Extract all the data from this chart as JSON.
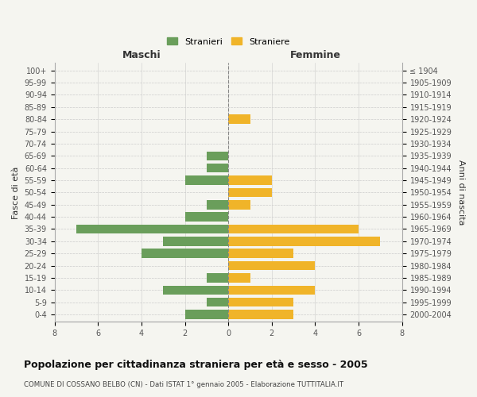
{
  "age_groups": [
    "0-4",
    "5-9",
    "10-14",
    "15-19",
    "20-24",
    "25-29",
    "30-34",
    "35-39",
    "40-44",
    "45-49",
    "50-54",
    "55-59",
    "60-64",
    "65-69",
    "70-74",
    "75-79",
    "80-84",
    "85-89",
    "90-94",
    "95-99",
    "100+"
  ],
  "birth_years": [
    "2000-2004",
    "1995-1999",
    "1990-1994",
    "1985-1989",
    "1980-1984",
    "1975-1979",
    "1970-1974",
    "1965-1969",
    "1960-1964",
    "1955-1959",
    "1950-1954",
    "1945-1949",
    "1940-1944",
    "1935-1939",
    "1930-1934",
    "1925-1929",
    "1920-1924",
    "1915-1919",
    "1910-1914",
    "1905-1909",
    "≤ 1904"
  ],
  "maschi": [
    2,
    1,
    3,
    1,
    0,
    4,
    3,
    7,
    2,
    1,
    0,
    2,
    1,
    1,
    0,
    0,
    0,
    0,
    0,
    0,
    0
  ],
  "femmine": [
    3,
    3,
    4,
    1,
    4,
    3,
    7,
    6,
    0,
    1,
    2,
    2,
    0,
    0,
    0,
    0,
    1,
    0,
    0,
    0,
    0
  ],
  "maschi_color": "#6a9e5b",
  "femmine_color": "#f0b429",
  "bg_color": "#f5f5f0",
  "grid_color": "#cccccc",
  "bar_height": 0.75,
  "xlim": 8,
  "title": "Popolazione per cittadinanza straniera per età e sesso - 2005",
  "subtitle": "COMUNE DI COSSANO BELBO (CN) - Dati ISTAT 1° gennaio 2005 - Elaborazione TUTTITALIA.IT",
  "xlabel_left": "Maschi",
  "xlabel_right": "Femmine",
  "ylabel_left": "Fasce di età",
  "ylabel_right": "Anni di nascita",
  "legend_stranieri": "Stranieri",
  "legend_straniere": "Straniere"
}
